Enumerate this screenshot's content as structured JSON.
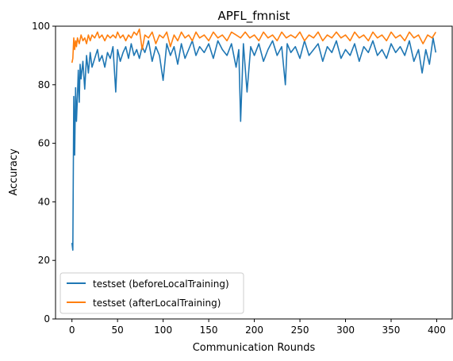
{
  "chart_data": {
    "type": "line",
    "title": "APFL_fmnist",
    "xlabel": "Communication Rounds",
    "ylabel": "Accuracy",
    "xlim": [
      -18,
      417
    ],
    "ylim": [
      0,
      100
    ],
    "xticks": [
      0,
      50,
      100,
      150,
      200,
      250,
      300,
      350,
      400
    ],
    "yticks": [
      0,
      20,
      40,
      60,
      80,
      100
    ],
    "grid": false,
    "legend_position": "lower-left",
    "series": [
      {
        "name": "testset (beforeLocalTraining)",
        "color": "#1f77b4",
        "x": [
          0,
          1,
          2,
          3,
          4,
          5,
          6,
          7,
          8,
          9,
          10,
          12,
          14,
          16,
          18,
          20,
          22,
          25,
          28,
          30,
          33,
          36,
          39,
          42,
          45,
          48,
          50,
          53,
          56,
          59,
          62,
          65,
          68,
          71,
          74,
          77,
          80,
          84,
          88,
          92,
          96,
          100,
          104,
          108,
          112,
          116,
          120,
          124,
          128,
          132,
          136,
          140,
          145,
          150,
          155,
          160,
          165,
          170,
          175,
          180,
          183,
          185,
          188,
          192,
          196,
          200,
          205,
          210,
          215,
          220,
          225,
          230,
          234,
          236,
          240,
          245,
          250,
          255,
          260,
          265,
          270,
          275,
          280,
          285,
          290,
          295,
          300,
          305,
          310,
          315,
          320,
          325,
          330,
          335,
          340,
          345,
          350,
          355,
          360,
          365,
          370,
          375,
          380,
          384,
          388,
          392,
          396,
          399
        ],
        "values": [
          26,
          23.5,
          76,
          56,
          79,
          67.5,
          76,
          85,
          74,
          87,
          82,
          88,
          78.5,
          90,
          84,
          91,
          86,
          89,
          92,
          88,
          90,
          86,
          91,
          89,
          93,
          77.5,
          92,
          88,
          91,
          93,
          89,
          94,
          90,
          92,
          89,
          93,
          91,
          95,
          88,
          93,
          90,
          81.5,
          94,
          90,
          93,
          87,
          94,
          89,
          92,
          95,
          90,
          93,
          91,
          94,
          89,
          95,
          92,
          90,
          94,
          86,
          92,
          67.5,
          94,
          77.5,
          93,
          90,
          94,
          88,
          92,
          95,
          90,
          93,
          80,
          94,
          91,
          93,
          89,
          95,
          90,
          92,
          94,
          88,
          93,
          91,
          95,
          89,
          92,
          90,
          94,
          88,
          93,
          91,
          95,
          90,
          92,
          89,
          94,
          91,
          93,
          90,
          95,
          88,
          92,
          84,
          92,
          87,
          96,
          91
        ]
      },
      {
        "name": "testset (afterLocalTraining)",
        "color": "#ff7f0e",
        "x": [
          0,
          1,
          2,
          3,
          4,
          5,
          6,
          8,
          10,
          12,
          14,
          16,
          18,
          20,
          22,
          25,
          28,
          30,
          33,
          36,
          39,
          42,
          45,
          48,
          50,
          53,
          56,
          59,
          62,
          65,
          68,
          71,
          74,
          77,
          80,
          84,
          88,
          92,
          96,
          100,
          104,
          108,
          112,
          116,
          120,
          124,
          128,
          132,
          136,
          140,
          145,
          150,
          155,
          160,
          165,
          170,
          175,
          180,
          185,
          190,
          195,
          200,
          205,
          210,
          215,
          220,
          225,
          230,
          235,
          240,
          245,
          250,
          255,
          260,
          265,
          270,
          275,
          280,
          285,
          290,
          295,
          300,
          305,
          310,
          315,
          320,
          325,
          330,
          335,
          340,
          345,
          350,
          355,
          360,
          365,
          370,
          375,
          380,
          385,
          390,
          395,
          399
        ],
        "values": [
          87.5,
          89,
          96,
          92,
          95,
          93,
          96,
          94,
          97,
          95,
          96,
          94,
          97,
          95,
          97,
          96,
          98,
          96,
          97,
          95,
          97,
          96,
          97,
          96,
          98,
          96,
          97,
          95,
          97,
          96,
          98,
          97,
          99,
          92,
          97,
          96,
          98,
          94,
          97,
          96,
          98,
          93,
          97,
          95,
          98,
          96,
          97,
          95,
          98,
          96,
          97,
          95,
          98,
          96,
          97,
          95,
          98,
          97,
          96,
          98,
          96,
          97,
          95,
          98,
          96,
          97,
          95,
          98,
          96,
          97,
          96,
          98,
          95,
          97,
          96,
          98,
          95,
          97,
          96,
          98,
          96,
          97,
          95,
          98,
          96,
          97,
          95,
          98,
          96,
          97,
          95,
          98,
          96,
          97,
          95,
          98,
          96,
          97,
          94,
          97,
          96,
          98
        ]
      }
    ]
  }
}
